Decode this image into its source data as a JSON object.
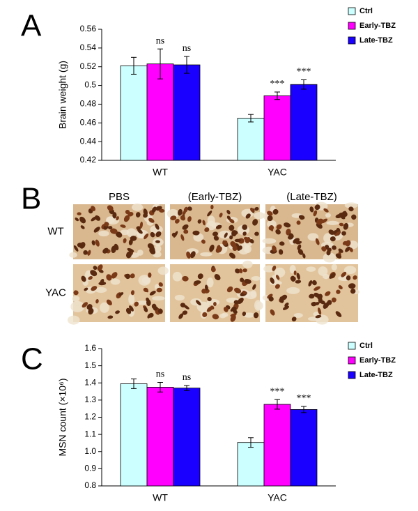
{
  "panel_labels": [
    "A",
    "B",
    "C"
  ],
  "chart_data": [
    {
      "type": "bar",
      "ylabel": "Brain weight (g)",
      "categories": [
        "WT",
        "YAC"
      ],
      "ylim": [
        0.42,
        0.56
      ],
      "yticks": [
        0.42,
        0.44,
        0.46,
        0.48,
        0.5,
        0.52,
        0.54,
        0.56
      ],
      "series": [
        {
          "name": "Ctrl",
          "color": "#ccffff",
          "values": [
            0.521,
            0.465
          ],
          "errors": [
            0.009,
            0.004
          ]
        },
        {
          "name": "Early-TBZ",
          "color": "#ff00ff",
          "values": [
            0.523,
            0.489
          ],
          "errors": [
            0.016,
            0.004
          ],
          "annotations": [
            "ns",
            "***"
          ]
        },
        {
          "name": "Late-TBZ",
          "color": "#1a00ff",
          "values": [
            0.522,
            0.501
          ],
          "errors": [
            0.009,
            0.005
          ],
          "annotations": [
            "ns",
            "***"
          ]
        }
      ]
    },
    {
      "type": "bar",
      "ylabel": "MSN count (×10⁶)",
      "categories": [
        "WT",
        "YAC"
      ],
      "ylim": [
        0.8,
        1.6
      ],
      "yticks": [
        0.8,
        0.9,
        {
          "value": 1,
          "label": "1.0"
        },
        1.1,
        1.2,
        1.3,
        1.4,
        1.5,
        1.6
      ],
      "series": [
        {
          "name": "Ctrl",
          "color": "#ccffff",
          "values": [
            1.395,
            1.053
          ],
          "errors": [
            0.028,
            0.028
          ]
        },
        {
          "name": "Early-TBZ",
          "color": "#ff00ff",
          "values": [
            1.375,
            1.275
          ],
          "errors": [
            0.028,
            0.028
          ],
          "annotations": [
            "ns",
            "***"
          ]
        },
        {
          "name": "Late-TBZ",
          "color": "#1a00ff",
          "values": [
            1.37,
            1.245
          ],
          "errors": [
            0.015,
            0.018
          ],
          "annotations": [
            "ns",
            "***"
          ]
        }
      ]
    }
  ],
  "micrograph": {
    "columns": [
      "PBS",
      "(Early-TBZ)",
      "(Late-TBZ)"
    ],
    "rows": [
      "WT",
      "YAC"
    ]
  }
}
